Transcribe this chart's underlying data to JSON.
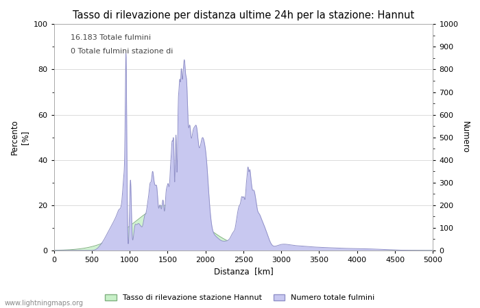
{
  "title": "Tasso di rilevazione per distanza ultime 24h per la stazione: Hannut",
  "xlabel": "Distanza  [km]",
  "ylabel_left_top": "Percento",
  "ylabel_left_bottom": "[%]",
  "ylabel_right": "Numero",
  "annotation_line1": "16.183 Totale fulmini",
  "annotation_line2": "0 Totale fulmini stazione di",
  "legend_green": "Tasso di rilevazione stazione Hannut",
  "legend_blue": "Numero totale fulmini",
  "watermark": "www.lightningmaps.org",
  "xlim": [
    0,
    5000
  ],
  "ylim_left": [
    0,
    100
  ],
  "ylim_right": [
    0,
    1000
  ],
  "xticks": [
    0,
    500,
    1000,
    1500,
    2000,
    2500,
    3000,
    3500,
    4000,
    4500,
    5000
  ],
  "yticks_left": [
    0,
    20,
    40,
    60,
    80,
    100
  ],
  "yticks_right": [
    0,
    100,
    200,
    300,
    400,
    500,
    600,
    700,
    800,
    900,
    1000
  ],
  "fill_blue_color": "#c8c8f0",
  "fill_blue_edge_color": "#9090c8",
  "fill_green_color": "#c8f0c8",
  "fill_green_edge_color": "#80b080",
  "background_color": "#ffffff",
  "grid_color": "#cccccc",
  "title_fontsize": 10.5,
  "axis_fontsize": 8.5,
  "tick_fontsize": 8,
  "annotation_fontsize": 8,
  "fig_width": 7.0,
  "fig_height": 4.5,
  "dpi": 100
}
